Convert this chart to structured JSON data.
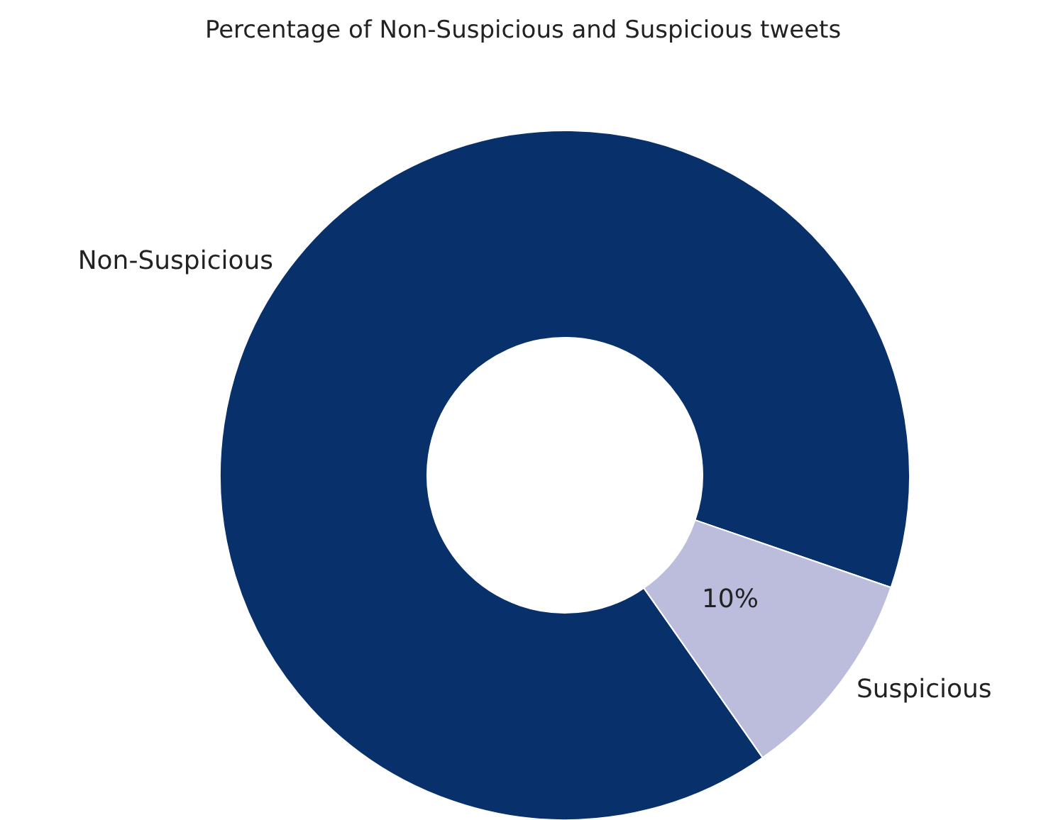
{
  "chart_data": {
    "type": "donut",
    "title": "Percentage of Non-Suspicious and Suspicious tweets",
    "categories": [
      "Non-Suspicious",
      "Suspicious"
    ],
    "values": [
      90,
      10
    ],
    "colors": [
      "#08306b",
      "#bcbddc"
    ],
    "value_labels": [
      null,
      "10%"
    ],
    "legend": false
  }
}
